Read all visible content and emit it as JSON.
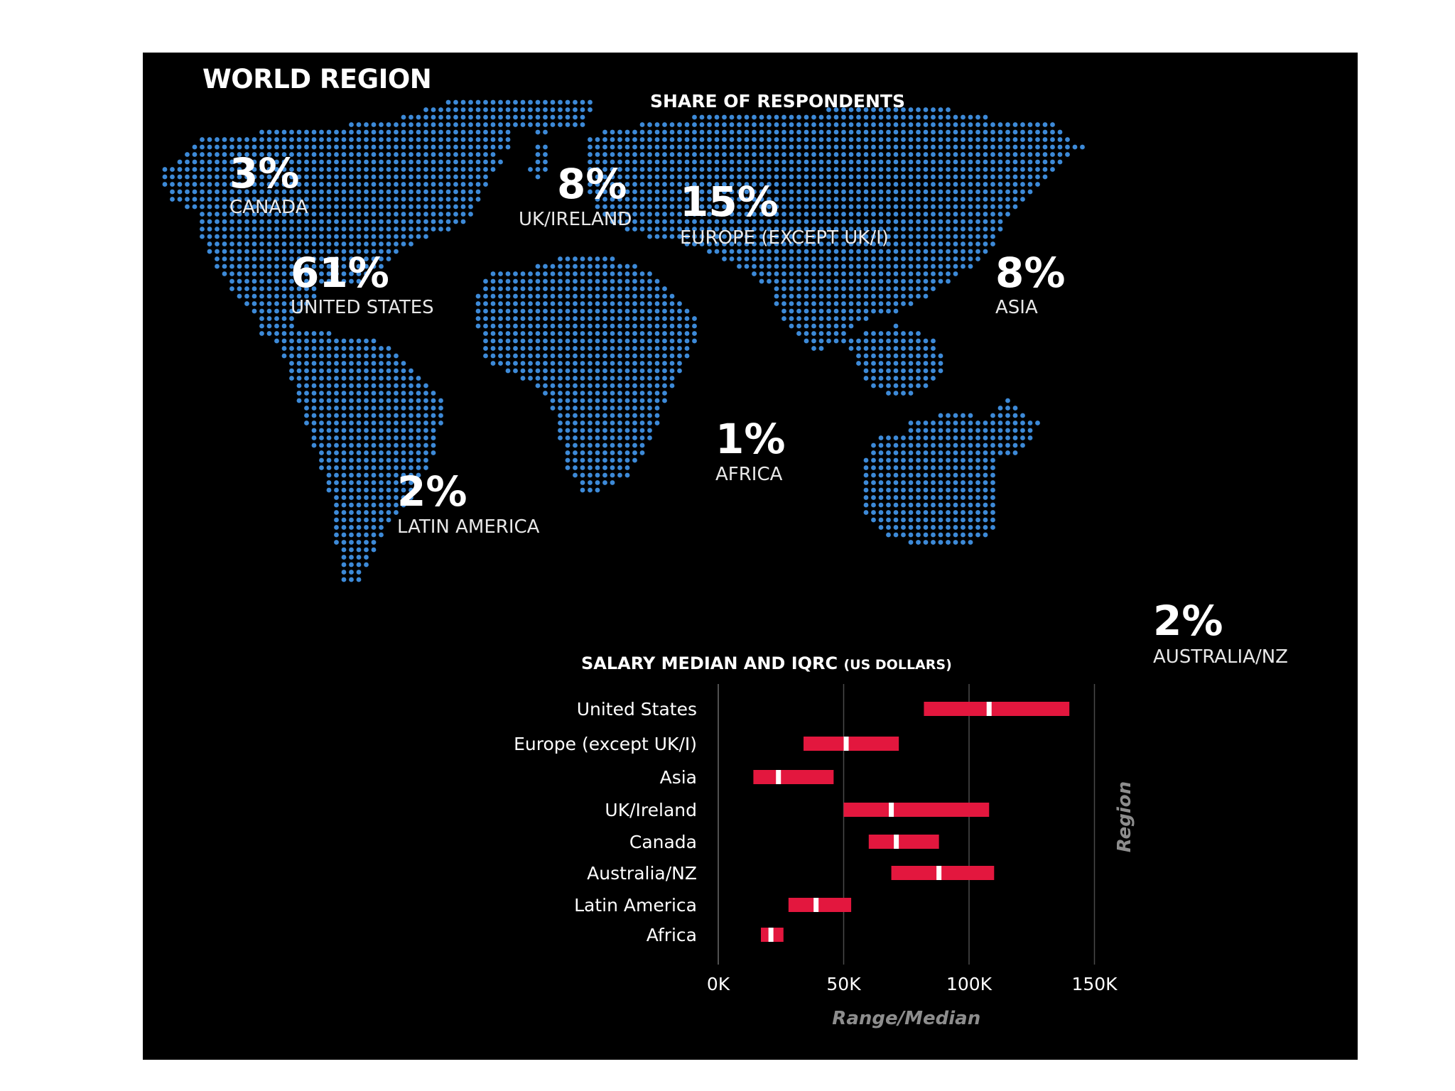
{
  "map": {
    "title": "WORLD REGION",
    "subtitle": "SHARE OF RESPONDENTS",
    "dot_color": "#3d8ad8",
    "regions": [
      {
        "key": "canada",
        "percent": "3%",
        "name": "CANADA"
      },
      {
        "key": "uk",
        "percent": "8%",
        "name": "UK/IRELAND"
      },
      {
        "key": "europe",
        "percent": "15%",
        "name": "EUROPE (EXCEPT UK/I)"
      },
      {
        "key": "us",
        "percent": "61%",
        "name": "UNITED STATES"
      },
      {
        "key": "asia",
        "percent": "8%",
        "name": "ASIA"
      },
      {
        "key": "africa",
        "percent": "1%",
        "name": "AFRICA"
      },
      {
        "key": "latam",
        "percent": "2%",
        "name": "LATIN AMERICA"
      },
      {
        "key": "aus",
        "percent": "2%",
        "name": "AUSTRALIA/NZ"
      }
    ]
  },
  "chart_heading": {
    "main": "SALARY MEDIAN AND IQRC",
    "unit": "(US DOLLARS)"
  },
  "chart_data": {
    "type": "bar",
    "orientation": "horizontal-range",
    "categories": [
      "United States",
      "Europe (except UK/I)",
      "Asia",
      "UK/Ireland",
      "Canada",
      "Australia/NZ",
      "Latin America",
      "Africa"
    ],
    "series": [
      {
        "values_low": [
          82000,
          34000,
          14000,
          50000,
          60000,
          69000,
          28000,
          17000
        ]
      },
      {
        "values_high": [
          140000,
          72000,
          46000,
          108000,
          88000,
          110000,
          53000,
          26000
        ]
      },
      {
        "median": [
          108000,
          51000,
          24000,
          69000,
          71000,
          88000,
          39000,
          21000
        ]
      }
    ],
    "xlim": [
      0,
      150000
    ],
    "xticks": [
      0,
      50000,
      100000,
      150000
    ],
    "xtick_labels": [
      "0K",
      "50K",
      "100K",
      "150K"
    ],
    "xlabel": "Range/Median",
    "ylabel": "Region",
    "grid": true,
    "bar_color": "#e3173e",
    "median_color": "#ffffff"
  }
}
